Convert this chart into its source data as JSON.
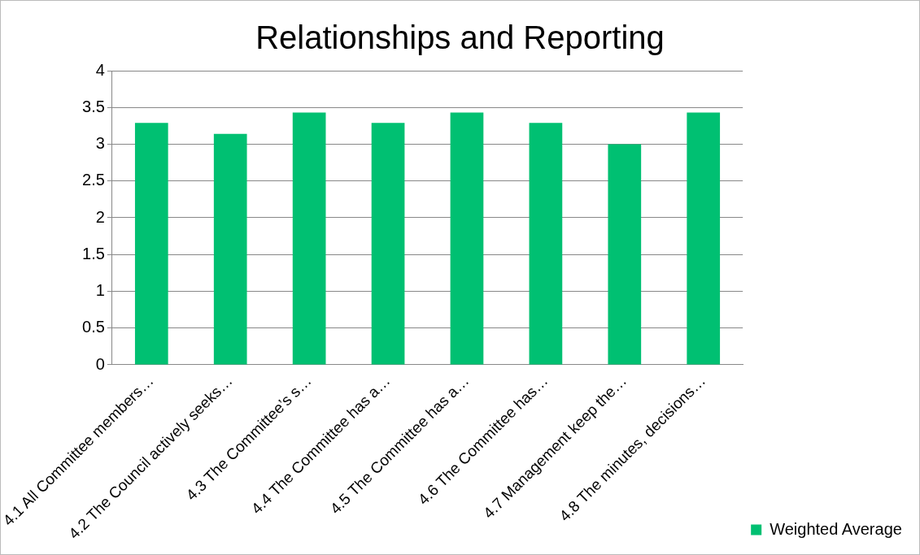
{
  "chart_data": {
    "type": "bar",
    "title": "Relationships and Reporting",
    "categories": [
      "4.1 All Committee members…",
      "4.2 The Council actively seeks…",
      "4.3 The Committee’s s…",
      "4.4 The Committee has a…",
      "4.5 The Committee has a…",
      "4.6 The Committee has…",
      "4.7 Management keep the…",
      "4.8 The minutes, decisions…"
    ],
    "series": [
      {
        "name": "Weighted Average",
        "color": "#00c072",
        "values": [
          3.29,
          3.14,
          3.43,
          3.29,
          3.43,
          3.29,
          3.0,
          3.43
        ]
      }
    ],
    "ylim": [
      0,
      4
    ],
    "yticks": [
      0,
      0.5,
      1,
      1.5,
      2,
      2.5,
      3,
      3.5,
      4
    ],
    "grid": "y",
    "legend": "right"
  }
}
